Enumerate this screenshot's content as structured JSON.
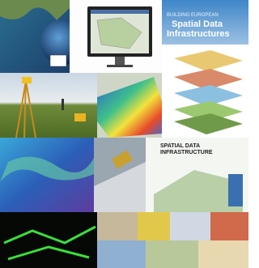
{
  "book_cover": {
    "kicker": "BUILDING EUROPEAN",
    "title_line1": "Spatial Data",
    "title_line2": "Infrastructures"
  },
  "sdi_poster": {
    "title_line1": "SPATIAL DATA",
    "title_line2": "INFRASTRUCTURE"
  }
}
